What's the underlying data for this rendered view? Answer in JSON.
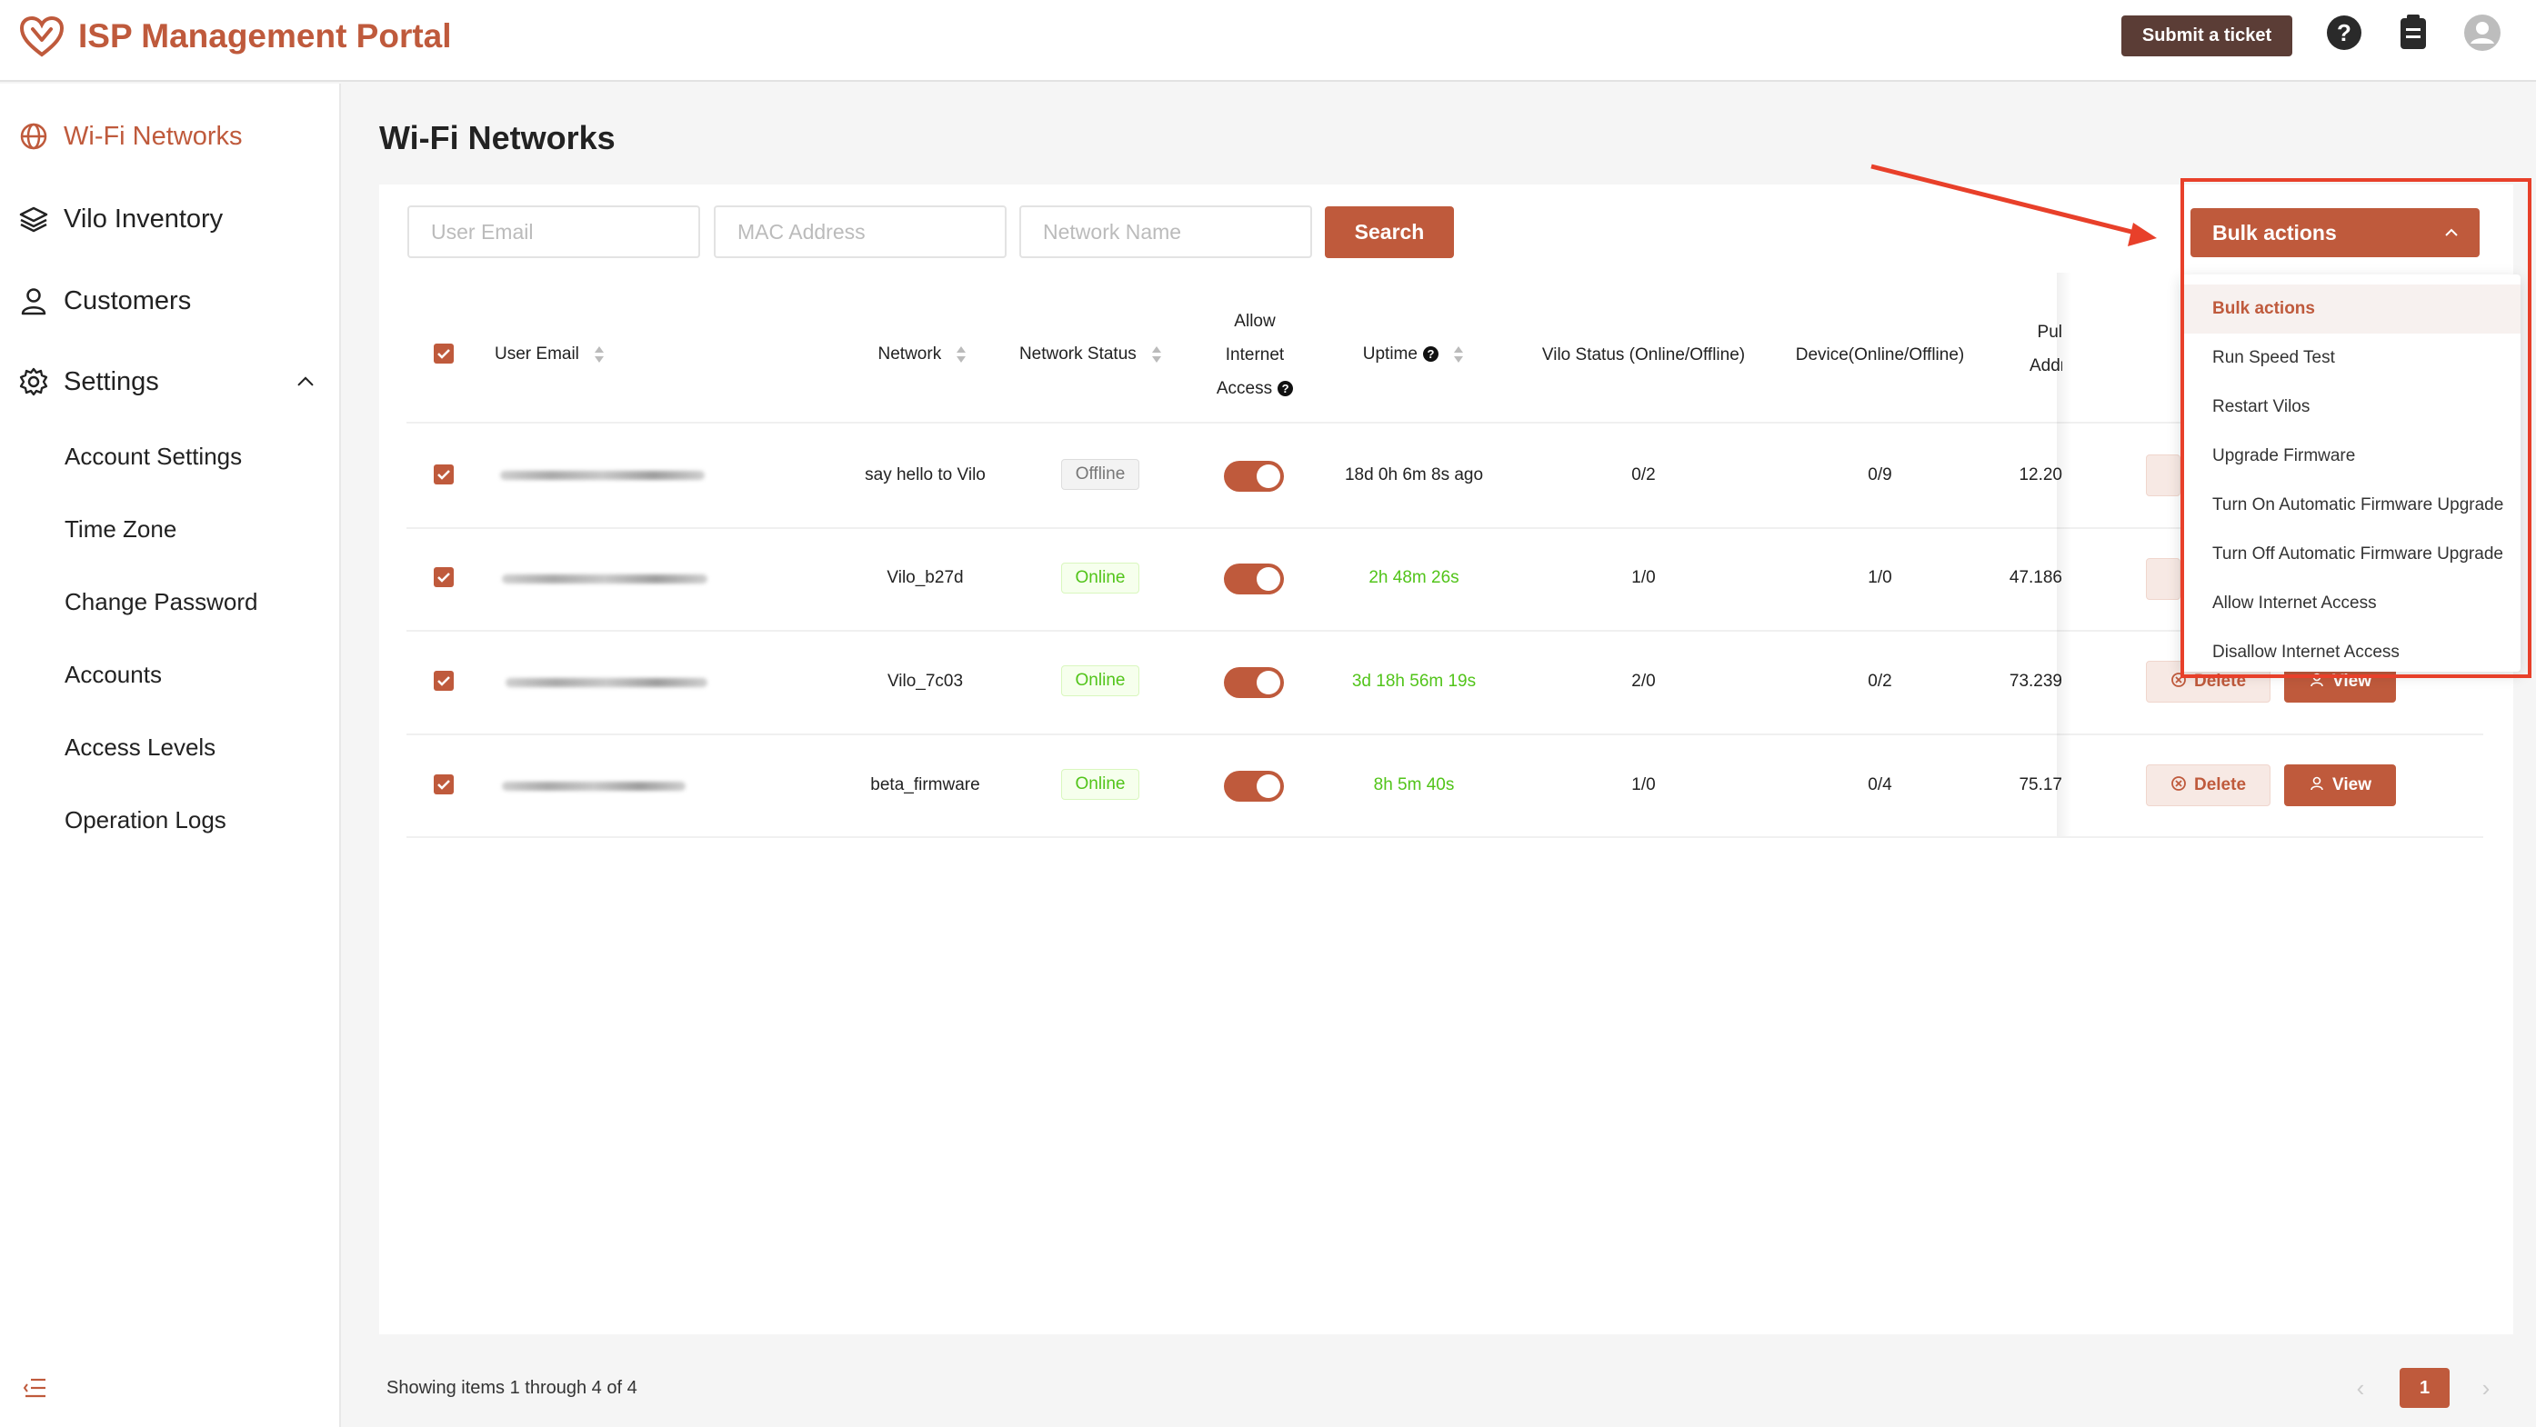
{
  "header": {
    "title": "ISP Management Portal",
    "submit_ticket_label": "Submit a ticket",
    "icons": [
      "help-icon",
      "clipboard-icon",
      "user-account-icon"
    ]
  },
  "sidebar": {
    "items": [
      {
        "label": "Wi-Fi Networks",
        "icon": "globe-icon",
        "active": true
      },
      {
        "label": "Vilo Inventory",
        "icon": "layers-icon"
      },
      {
        "label": "Customers",
        "icon": "user-icon"
      },
      {
        "label": "Settings",
        "icon": "gear-icon",
        "expanded": true
      }
    ],
    "settings_items": [
      "Account Settings",
      "Time Zone",
      "Change Password",
      "Accounts",
      "Access Levels",
      "Operation Logs"
    ]
  },
  "page": {
    "title": "Wi-Fi Networks"
  },
  "filters": {
    "user_email_placeholder": "User Email",
    "mac_address_placeholder": "MAC Address",
    "network_name_placeholder": "Network Name",
    "search_label": "Search"
  },
  "table": {
    "headers": {
      "user_email": "User Email",
      "network": "Network",
      "network_status": "Network Status",
      "allow_internet_1": "Allow",
      "allow_internet_2": "Internet",
      "allow_internet_3": "Access",
      "uptime": "Uptime",
      "vilo_status": "Vilo Status (Online/Offline)",
      "device": "Device(Online/Offline)",
      "public_address_1": "Pul",
      "public_address_2": "Addr"
    },
    "rows": [
      {
        "network": "say hello to Vilo",
        "status": "Offline",
        "uptime": "18d 0h 6m 8s ago",
        "vilo": "0/2",
        "device": "0/9",
        "ip": "12.20",
        "checked": true,
        "internet_access": true
      },
      {
        "network": "Vilo_b27d",
        "status": "Online",
        "uptime": "2h 48m 26s",
        "vilo": "1/0",
        "device": "1/0",
        "ip": "47.186",
        "checked": true,
        "internet_access": true
      },
      {
        "network": "Vilo_7c03",
        "status": "Online",
        "uptime": "3d 18h 56m 19s",
        "vilo": "2/0",
        "device": "0/2",
        "ip": "73.239",
        "checked": true,
        "internet_access": true
      },
      {
        "network": "beta_firmware",
        "status": "Online",
        "uptime": "8h 5m 40s",
        "vilo": "1/0",
        "device": "0/4",
        "ip": "75.17",
        "checked": true,
        "internet_access": true
      }
    ],
    "delete_label": "Delete",
    "view_label": "View"
  },
  "bulk": {
    "button_label": "Bulk actions",
    "menu": [
      "Bulk actions",
      "Run Speed Test",
      "Restart Vilos",
      "Upgrade Firmware",
      "Turn On Automatic Firmware Upgrade",
      "Turn Off Automatic Firmware Upgrade",
      "Allow Internet Access",
      "Disallow Internet Access"
    ],
    "selected_index": 0
  },
  "pagination": {
    "summary": "Showing items 1 through 4 of 4",
    "current_page": "1"
  },
  "colors": {
    "brand": "#bf5a3c",
    "ticket_button": "#5b3d36",
    "online_text": "#52c41a",
    "annotation_red": "#e8402a"
  }
}
